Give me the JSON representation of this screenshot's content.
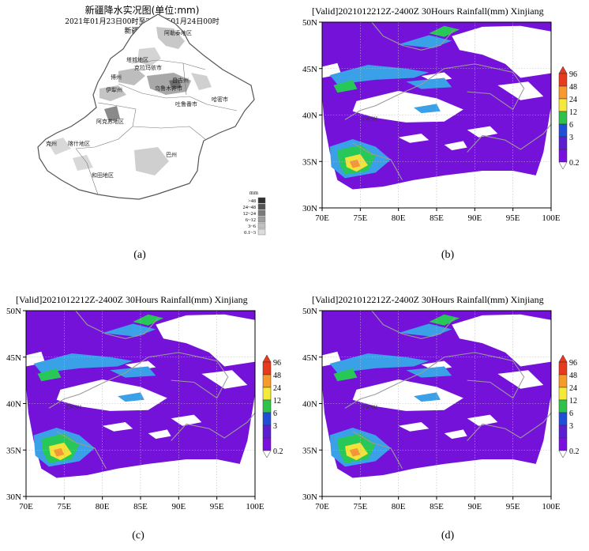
{
  "panel_a": {
    "title": "新疆降水实况图(单位:mm)",
    "subtitle": "2021年01月23日00时至2021年01月24日00时",
    "organization": "新疆气象台",
    "caption": "(a)",
    "legend": {
      "unit": "mm",
      "labels": [
        ">48",
        "24~48",
        "12~24",
        "6~12",
        "3~6",
        "0.1~3"
      ],
      "colors": [
        "#303030",
        "#555555",
        "#7a7a7a",
        "#9e9e9e",
        "#c0c0c0",
        "#dcdcdc"
      ]
    },
    "regions": [
      "阿勒泰地区",
      "塔城地区",
      "克拉玛依市",
      "博州",
      "伊犁州",
      "昌吉州",
      "乌鲁木齐市",
      "吐鲁番市",
      "哈密市",
      "阿克苏地区",
      "克州",
      "喀什地区",
      "和田地区",
      "巴州"
    ]
  },
  "panels": [
    {
      "id": "b",
      "caption": "(b)",
      "title": "[Valid]2021012212Z-2400Z    30Hours Rainfall(mm) Xinjiang",
      "station": "ZWSH"
    },
    {
      "id": "c",
      "caption": "(c)",
      "title": "[Valid]2021012212Z-2400Z    30Hours Rainfall(mm) Xinjiang",
      "station": "ZWSH"
    },
    {
      "id": "d",
      "caption": "(d)",
      "title": "[Valid]2021012212Z-2400Z    30Hours Rainfall(mm) Xinjiang",
      "station": "ZWSH"
    }
  ],
  "axes": {
    "x_ticks": [
      "70E",
      "75E",
      "80E",
      "85E",
      "90E",
      "95E",
      "100E"
    ],
    "y_ticks": [
      "30N",
      "35N",
      "40N",
      "45N",
      "50N"
    ]
  },
  "colorbar": {
    "labels": [
      "96",
      "48",
      "24",
      "12",
      "6",
      "3",
      "0.2"
    ],
    "colors": [
      "#e83a1c",
      "#f59a2b",
      "#f5e93a",
      "#2fc24a",
      "#1f4fd8",
      "#5a1fd0",
      "#7a10e0"
    ]
  },
  "colors": {
    "field": "#7512d9",
    "land": "#ffffff",
    "light": "#3aa0e8",
    "green": "#28c858",
    "yellow": "#f2e23a",
    "orange": "#f3963a",
    "border": "#9a9a9a"
  }
}
